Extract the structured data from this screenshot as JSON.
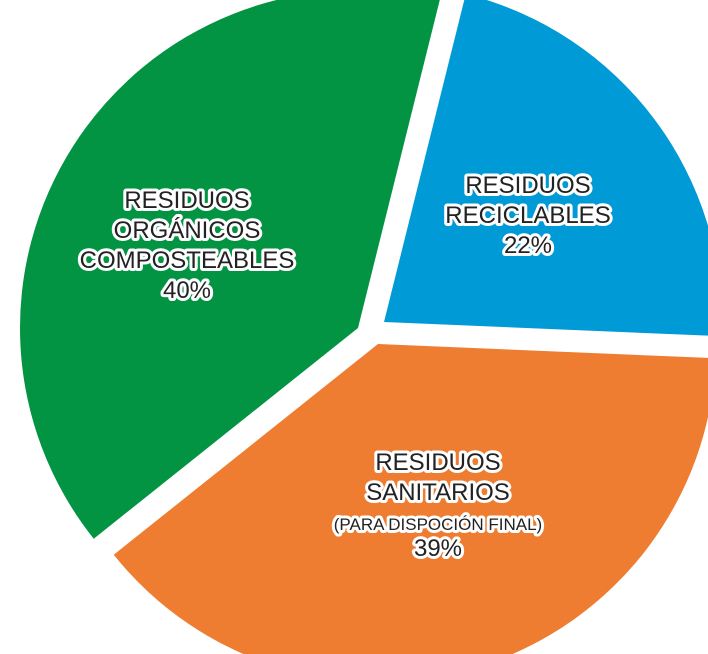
{
  "chart_data": {
    "type": "pie",
    "title": "",
    "slices": [
      {
        "label_lines": [
          "RESIDUOS",
          "RECICLABLES"
        ],
        "value": 22,
        "value_label": "22%",
        "color": "#009ad6"
      },
      {
        "label_lines": [
          "RESIDUOS",
          "SANITARIOS",
          "(PARA DISPOCIÓN FINAL)"
        ],
        "value": 39,
        "value_label": "39%",
        "color": "#ee7d31"
      },
      {
        "label_lines": [
          "RESIDUOS",
          "ORGÁNICOS",
          "COMPOSTEABLES"
        ],
        "value": 40,
        "value_label": "40%",
        "color": "#029443"
      }
    ],
    "legend": "none",
    "exploded": true
  }
}
